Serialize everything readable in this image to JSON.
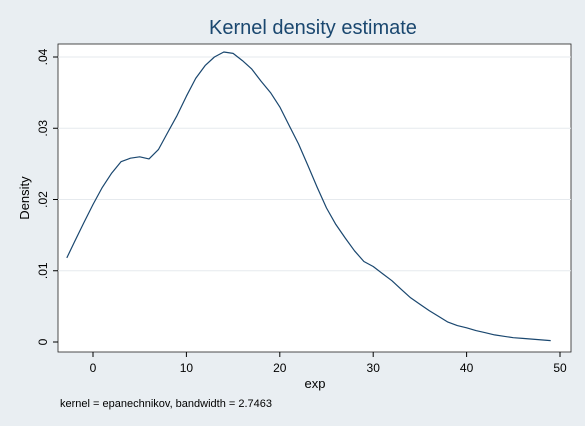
{
  "chart_data": {
    "type": "line",
    "title": "Kernel density estimate",
    "xlabel": "exp",
    "ylabel": "Density",
    "note": "kernel = epanechnikov, bandwidth = 2.7463",
    "xlim": [
      -3,
      50
    ],
    "ylim": [
      0,
      0.041
    ],
    "xticks": [
      0,
      10,
      20,
      30,
      40,
      50
    ],
    "xtick_labels": [
      "0",
      "10",
      "20",
      "30",
      "40",
      "50"
    ],
    "yticks": [
      0,
      0.01,
      0.02,
      0.03,
      0.04
    ],
    "ytick_labels": [
      "0",
      ".01",
      ".02",
      ".03",
      ".04"
    ],
    "grid": "horizontal",
    "legend": "none",
    "line_color": "#1a476f",
    "series": [
      {
        "x": [
          -2.8,
          -2,
          -1,
          0,
          1,
          2,
          3,
          4,
          5,
          6,
          7,
          8,
          9,
          10,
          11,
          12,
          13,
          14,
          15,
          16,
          17,
          18,
          19,
          20,
          21,
          22,
          23,
          24,
          25,
          26,
          27,
          28,
          29,
          30,
          31,
          32,
          33,
          34,
          35,
          36,
          37,
          38,
          39,
          40,
          41,
          42,
          43,
          44,
          45,
          46,
          47,
          48,
          49
        ],
        "y": [
          0.0118,
          0.014,
          0.0167,
          0.0193,
          0.0217,
          0.0237,
          0.0253,
          0.0258,
          0.026,
          0.0257,
          0.027,
          0.0294,
          0.0318,
          0.0345,
          0.037,
          0.0388,
          0.04,
          0.0407,
          0.0405,
          0.0395,
          0.0383,
          0.0366,
          0.035,
          0.033,
          0.0304,
          0.0278,
          0.0248,
          0.0217,
          0.0188,
          0.0165,
          0.0146,
          0.0128,
          0.0113,
          0.0106,
          0.0096,
          0.0086,
          0.0074,
          0.0062,
          0.0053,
          0.0044,
          0.0036,
          0.0028,
          0.0023,
          0.002,
          0.0016,
          0.0013,
          0.001,
          0.0008,
          0.0006,
          0.0005,
          0.0004,
          0.0003,
          0.0002
        ]
      }
    ]
  }
}
